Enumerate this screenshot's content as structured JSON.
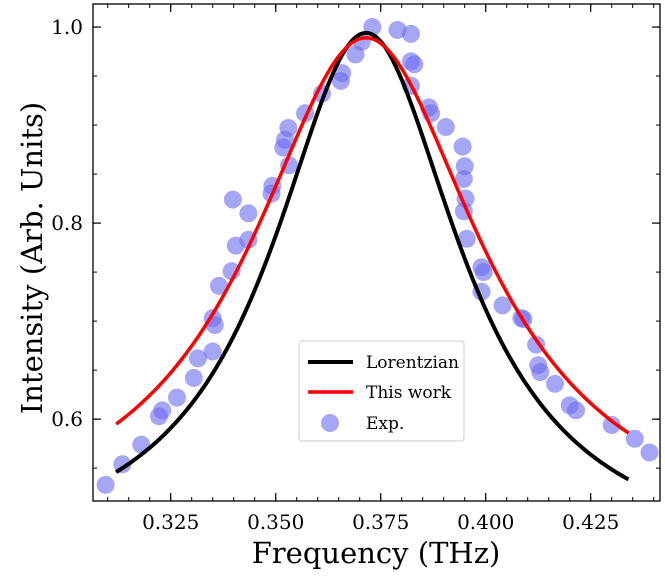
{
  "chart_data": {
    "type": "scatter",
    "xlabel": "Frequency (THz)",
    "ylabel": "Intensity (Arb. Units)",
    "xlim": [
      0.3065,
      0.4415
    ],
    "ylim": [
      0.5165,
      1.0235
    ],
    "x_ticks": [
      "0.325",
      "0.350",
      "0.375",
      "0.400",
      "0.425"
    ],
    "y_ticks": [
      "0.6",
      "0.8",
      "1.0"
    ],
    "x_minor_step": 0.005,
    "y_minor_step": 0.05,
    "legend_position": "lower-center",
    "legend": [
      "Lorentzian",
      "This work",
      "Exp."
    ],
    "colors": {
      "lorentzian": "#000000",
      "this_work": "#ff0000",
      "exp": "#6b6bf0"
    },
    "series": [
      {
        "name": "Lorentzian",
        "kind": "line",
        "center": 0.3715,
        "hwhm": 0.0274,
        "amplitude": 0.543,
        "offset": 0.451,
        "x_range": [
          0.312,
          0.434
        ]
      },
      {
        "name": "This work",
        "kind": "line",
        "center": 0.3715,
        "hwhm": 0.0335,
        "amplitude": 0.519,
        "offset": 0.47,
        "x_range": [
          0.312,
          0.434
        ]
      },
      {
        "name": "Exp.",
        "kind": "scatter",
        "points": [
          [
            0.3095,
            0.533
          ],
          [
            0.3135,
            0.554
          ],
          [
            0.318,
            0.574
          ],
          [
            0.3222,
            0.603
          ],
          [
            0.323,
            0.609
          ],
          [
            0.3265,
            0.622
          ],
          [
            0.3305,
            0.642
          ],
          [
            0.3315,
            0.662
          ],
          [
            0.335,
            0.669
          ],
          [
            0.335,
            0.703
          ],
          [
            0.3355,
            0.696
          ],
          [
            0.3365,
            0.736
          ],
          [
            0.3395,
            0.751
          ],
          [
            0.3398,
            0.824
          ],
          [
            0.3405,
            0.777
          ],
          [
            0.3435,
            0.783
          ],
          [
            0.3435,
            0.81
          ],
          [
            0.349,
            0.83
          ],
          [
            0.3492,
            0.838
          ],
          [
            0.3518,
            0.877
          ],
          [
            0.3522,
            0.885
          ],
          [
            0.353,
            0.897
          ],
          [
            0.3532,
            0.859
          ],
          [
            0.357,
            0.912
          ],
          [
            0.361,
            0.932
          ],
          [
            0.3655,
            0.945
          ],
          [
            0.3658,
            0.953
          ],
          [
            0.369,
            0.972
          ],
          [
            0.3705,
            0.985
          ],
          [
            0.373,
            1.0
          ],
          [
            0.379,
            0.997
          ],
          [
            0.3822,
            0.993
          ],
          [
            0.3822,
            0.965
          ],
          [
            0.383,
            0.962
          ],
          [
            0.3822,
            0.94
          ],
          [
            0.3865,
            0.918
          ],
          [
            0.387,
            0.912
          ],
          [
            0.3905,
            0.898
          ],
          [
            0.3945,
            0.878
          ],
          [
            0.395,
            0.858
          ],
          [
            0.3948,
            0.845
          ],
          [
            0.3952,
            0.825
          ],
          [
            0.3948,
            0.812
          ],
          [
            0.3955,
            0.784
          ],
          [
            0.399,
            0.755
          ],
          [
            0.3995,
            0.75
          ],
          [
            0.399,
            0.73
          ],
          [
            0.404,
            0.716
          ],
          [
            0.4085,
            0.703
          ],
          [
            0.409,
            0.702
          ],
          [
            0.412,
            0.676
          ],
          [
            0.4125,
            0.655
          ],
          [
            0.413,
            0.648
          ],
          [
            0.4165,
            0.636
          ],
          [
            0.42,
            0.614
          ],
          [
            0.4215,
            0.609
          ],
          [
            0.43,
            0.594
          ],
          [
            0.4355,
            0.58
          ],
          [
            0.439,
            0.566
          ]
        ]
      }
    ]
  }
}
